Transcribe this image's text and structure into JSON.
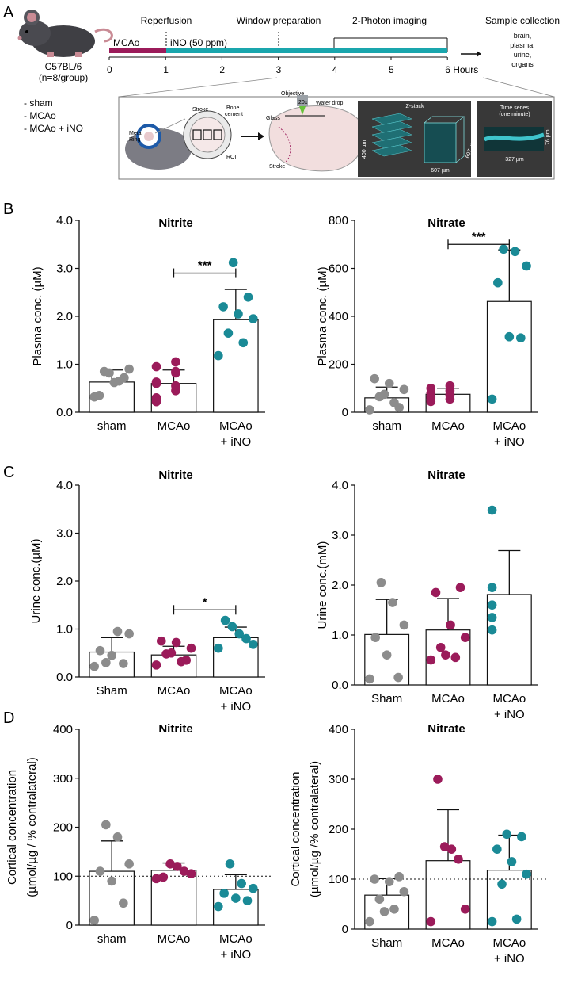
{
  "panel_letters": [
    "A",
    "B",
    "C",
    "D"
  ],
  "timeline": {
    "mouse_strain": "C57BL/6",
    "group_size": "(n=8/group)",
    "groups": [
      "- sham",
      "- MCAo",
      "- MCAo + iNO"
    ],
    "phase_labels": [
      "Reperfusion",
      "Window preparation",
      "2-Photon imaging"
    ],
    "mcao_label": "MCAo",
    "ino_label": "iNO (50 ppm)",
    "hour_ticks": [
      "0",
      "1",
      "2",
      "3",
      "4",
      "5",
      "6 Hours"
    ],
    "sample_title": "Sample collection",
    "sample_items": [
      "brain,",
      "plasma,",
      "urine,",
      "organs"
    ],
    "inset": {
      "metal_ring": [
        "Metal",
        "Ring"
      ],
      "stroke": "Stroke",
      "bone_cement": [
        "Bone",
        "cement"
      ],
      "roi": "ROI",
      "objective": "Objective",
      "objective_mag": "20x",
      "water_drop": "Water drop",
      "glass": "Glass",
      "stroke2": "Stroke",
      "zstack": "Z-stack",
      "z400": "400 µm",
      "z607a": "607 µm",
      "z607b": "607 µm",
      "ts_title": "Time series",
      "ts_sub": "(one minute)",
      "ts76": "76 µm",
      "ts327": "327 µm"
    }
  },
  "colors": {
    "sham": "#8c8c8c",
    "mcao": "#9b1b5a",
    "ino": "#1a8a96",
    "mcao_bar": "#9b1b5a",
    "ino_bar": "#1aa6ad"
  },
  "chart_data": [
    {
      "id": "B-nitrite",
      "type": "bar",
      "title": "Nitrite",
      "ylabel": "Plasma conc. (µM)",
      "ylim": [
        0,
        4
      ],
      "yticks": [
        "0.0",
        "1.0",
        "2.0",
        "3.0",
        "4.0"
      ],
      "categories": [
        [
          "sham"
        ],
        [
          "MCAo"
        ],
        [
          "MCAo",
          "+ iNO"
        ]
      ],
      "means": [
        0.63,
        0.6,
        1.93
      ],
      "sd": [
        0.25,
        0.28,
        0.63
      ],
      "points": [
        [
          0.32,
          0.65,
          0.85,
          0.9,
          0.62,
          0.35,
          0.72,
          0.82
        ],
        [
          0.3,
          0.45,
          0.63,
          0.85,
          0.95,
          1.05,
          0.22,
          0.55,
          0.6,
          0.82
        ],
        [
          1.18,
          1.45,
          1.65,
          1.95,
          2.05,
          2.2,
          2.4,
          3.12
        ]
      ],
      "significance": {
        "label": "***",
        "from": 1,
        "to": 2,
        "y": 2.9
      },
      "dotted_line": null
    },
    {
      "id": "B-nitrate",
      "type": "bar",
      "title": "Nitrate",
      "ylabel": "Plasma conc. (µM)",
      "ylim": [
        0,
        800
      ],
      "yticks": [
        "0",
        "200",
        "400",
        "600",
        "800"
      ],
      "categories": [
        [
          "sham"
        ],
        [
          "MCAo"
        ],
        [
          "MCAo",
          "+ iNO"
        ]
      ],
      "means": [
        60,
        75,
        462
      ],
      "sd": [
        45,
        25,
        215
      ],
      "points": [
        [
          10,
          40,
          65,
          95,
          120,
          140,
          20,
          75
        ],
        [
          45,
          55,
          60,
          70,
          80,
          90,
          100,
          110,
          65,
          75
        ],
        [
          55,
          310,
          315,
          540,
          610,
          670,
          680
        ]
      ],
      "significance": {
        "label": "***",
        "from": 1,
        "to": 2,
        "y": 700
      },
      "dotted_line": null
    },
    {
      "id": "C-nitrite",
      "type": "bar",
      "title": "Nitrite",
      "ylabel": "Urine conc.(µM)",
      "ylim": [
        0,
        4
      ],
      "yticks": [
        "0.0",
        "1.0",
        "2.0",
        "3.0",
        "4.0"
      ],
      "categories": [
        [
          "Sham"
        ],
        [
          "MCAo"
        ],
        [
          "MCAo",
          "+ iNO"
        ]
      ],
      "means": [
        0.52,
        0.46,
        0.82
      ],
      "sd": [
        0.3,
        0.18,
        0.22
      ],
      "points": [
        [
          0.22,
          0.28,
          0.45,
          0.55,
          0.9,
          0.95,
          0.3
        ],
        [
          0.25,
          0.32,
          0.48,
          0.6,
          0.72,
          0.75,
          0.35,
          0.5
        ],
        [
          0.6,
          0.68,
          0.8,
          0.9,
          1.05,
          1.18
        ]
      ],
      "significance": {
        "label": "*",
        "from": 1,
        "to": 2,
        "y": 1.4
      },
      "dotted_line": null
    },
    {
      "id": "C-nitrate",
      "type": "bar",
      "title": "Nitrate",
      "ylabel": "Urine conc.(mM)",
      "ylim": [
        0,
        4
      ],
      "yticks": [
        "0.0",
        "1.0",
        "2.0",
        "3.0",
        "4.0"
      ],
      "categories": [
        [
          "Sham"
        ],
        [
          "MCAo"
        ],
        [
          "MCAo",
          "+ iNO"
        ]
      ],
      "means": [
        1.01,
        1.1,
        1.81
      ],
      "sd": [
        0.7,
        0.63,
        0.88
      ],
      "points": [
        [
          0.12,
          0.15,
          0.6,
          0.95,
          1.2,
          1.65,
          2.05
        ],
        [
          0.5,
          0.55,
          0.75,
          0.95,
          1.2,
          1.85,
          1.95,
          0.6
        ],
        [
          1.1,
          1.35,
          1.6,
          1.95,
          3.5
        ]
      ],
      "significance": null,
      "dotted_line": null
    },
    {
      "id": "D-nitrite",
      "type": "bar",
      "title": "Nitrite",
      "ylabel": [
        "Cortical concentration",
        "(µmol/µg / % contralateral)"
      ],
      "ylim": [
        0,
        400
      ],
      "yticks": [
        "0",
        "100",
        "200",
        "300",
        "400"
      ],
      "categories": [
        [
          "sham"
        ],
        [
          "MCAo"
        ],
        [
          "MCAo",
          "+ iNO"
        ]
      ],
      "means": [
        110,
        112,
        73
      ],
      "sd": [
        62,
        15,
        30
      ],
      "points": [
        [
          10,
          45,
          90,
          110,
          125,
          180,
          205
        ],
        [
          95,
          105,
          110,
          120,
          125,
          98
        ],
        [
          38,
          50,
          55,
          65,
          75,
          85,
          125
        ]
      ],
      "significance": null,
      "dotted_line": 100
    },
    {
      "id": "D-nitrate",
      "type": "bar",
      "title": "Nitrate",
      "ylabel": [
        "Cortical concentration",
        "(µmol/µg /% contralateral)"
      ],
      "ylim": [
        0,
        400
      ],
      "yticks": [
        "0",
        "100",
        "200",
        "300",
        "400"
      ],
      "categories": [
        [
          "Sham"
        ],
        [
          "MCAo"
        ],
        [
          "MCAo",
          "+ iNO"
        ]
      ],
      "means": [
        68,
        137,
        118
      ],
      "sd": [
        33,
        102,
        70
      ],
      "points": [
        [
          15,
          40,
          60,
          75,
          95,
          100,
          105,
          35
        ],
        [
          15,
          40,
          140,
          160,
          165,
          300
        ],
        [
          15,
          20,
          90,
          110,
          135,
          160,
          185,
          190
        ]
      ],
      "significance": null,
      "dotted_line": 100
    }
  ]
}
